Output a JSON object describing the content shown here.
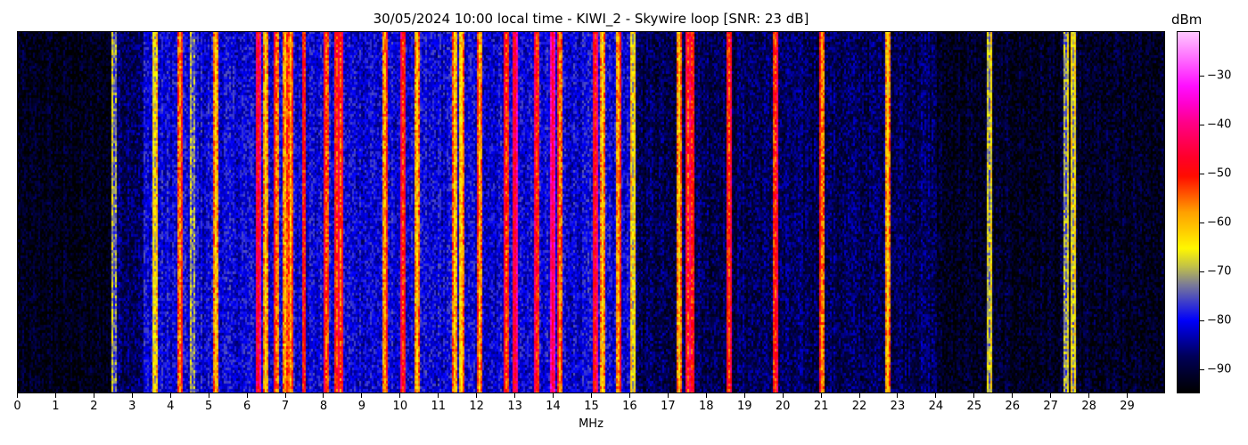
{
  "chart_data": {
    "type": "heatmap",
    "title": "30/05/2024 10:00 local time - KIWI_2 - Skywire loop [SNR: 23 dB]",
    "xlabel": "MHz",
    "xlim": [
      0,
      30
    ],
    "xticks": [
      0,
      1,
      2,
      3,
      4,
      5,
      6,
      7,
      8,
      9,
      10,
      11,
      12,
      13,
      14,
      15,
      16,
      17,
      18,
      19,
      20,
      21,
      22,
      23,
      24,
      25,
      26,
      27,
      28,
      29
    ],
    "colorbar": {
      "label": "dBm",
      "range": [
        -95,
        -21
      ],
      "ticks": [
        -30,
        -40,
        -50,
        -60,
        -70,
        -80,
        -90
      ],
      "colormap": [
        {
          "v": -95,
          "c": "#000000"
        },
        {
          "v": -88,
          "c": "#000050"
        },
        {
          "v": -80,
          "c": "#0000ff"
        },
        {
          "v": -72,
          "c": "#8a8a8a"
        },
        {
          "v": -66,
          "c": "#ffff00"
        },
        {
          "v": -58,
          "c": "#ffa000"
        },
        {
          "v": -50,
          "c": "#ff0000"
        },
        {
          "v": -40,
          "c": "#ff0080"
        },
        {
          "v": -33,
          "c": "#ff00ff"
        },
        {
          "v": -21,
          "c": "#ffc8ff"
        }
      ]
    },
    "noise_floor": [
      {
        "from": 0,
        "to": 2.55,
        "dbm": -93
      },
      {
        "from": 2.55,
        "to": 3.3,
        "dbm": -87
      },
      {
        "from": 3.3,
        "to": 16.1,
        "dbm": -81
      },
      {
        "from": 16.1,
        "to": 24,
        "dbm": -88
      },
      {
        "from": 24,
        "to": 30,
        "dbm": -92
      }
    ],
    "signals": [
      {
        "mhz": 2.55,
        "dbm": -78
      },
      {
        "mhz": 3.6,
        "dbm": -70
      },
      {
        "mhz": 4.25,
        "dbm": -60
      },
      {
        "mhz": 4.6,
        "dbm": -78
      },
      {
        "mhz": 5.2,
        "dbm": -64
      },
      {
        "mhz": 6.3,
        "dbm": -50
      },
      {
        "mhz": 6.5,
        "dbm": -64
      },
      {
        "mhz": 6.8,
        "dbm": -60
      },
      {
        "mhz": 7.0,
        "dbm": -62
      },
      {
        "mhz": 7.15,
        "dbm": -60
      },
      {
        "mhz": 7.5,
        "dbm": -54
      },
      {
        "mhz": 8.1,
        "dbm": -58
      },
      {
        "mhz": 8.35,
        "dbm": -55
      },
      {
        "mhz": 8.45,
        "dbm": -56
      },
      {
        "mhz": 9.6,
        "dbm": -62
      },
      {
        "mhz": 10.1,
        "dbm": -55
      },
      {
        "mhz": 10.45,
        "dbm": -64
      },
      {
        "mhz": 11.45,
        "dbm": -64
      },
      {
        "mhz": 11.6,
        "dbm": -66
      },
      {
        "mhz": 12.1,
        "dbm": -62
      },
      {
        "mhz": 12.8,
        "dbm": -56
      },
      {
        "mhz": 13.0,
        "dbm": -50
      },
      {
        "mhz": 13.6,
        "dbm": -55
      },
      {
        "mhz": 14.0,
        "dbm": -46
      },
      {
        "mhz": 14.2,
        "dbm": -60
      },
      {
        "mhz": 15.1,
        "dbm": -52
      },
      {
        "mhz": 15.3,
        "dbm": -64
      },
      {
        "mhz": 15.7,
        "dbm": -62
      },
      {
        "mhz": 16.1,
        "dbm": -70
      },
      {
        "mhz": 17.3,
        "dbm": -64
      },
      {
        "mhz": 17.55,
        "dbm": -55
      },
      {
        "mhz": 17.65,
        "dbm": -54
      },
      {
        "mhz": 18.6,
        "dbm": -55
      },
      {
        "mhz": 19.8,
        "dbm": -56
      },
      {
        "mhz": 21.05,
        "dbm": -60
      },
      {
        "mhz": 22.75,
        "dbm": -64
      },
      {
        "mhz": 25.4,
        "dbm": -74
      },
      {
        "mhz": 27.4,
        "dbm": -76
      },
      {
        "mhz": 27.6,
        "dbm": -72
      }
    ]
  }
}
